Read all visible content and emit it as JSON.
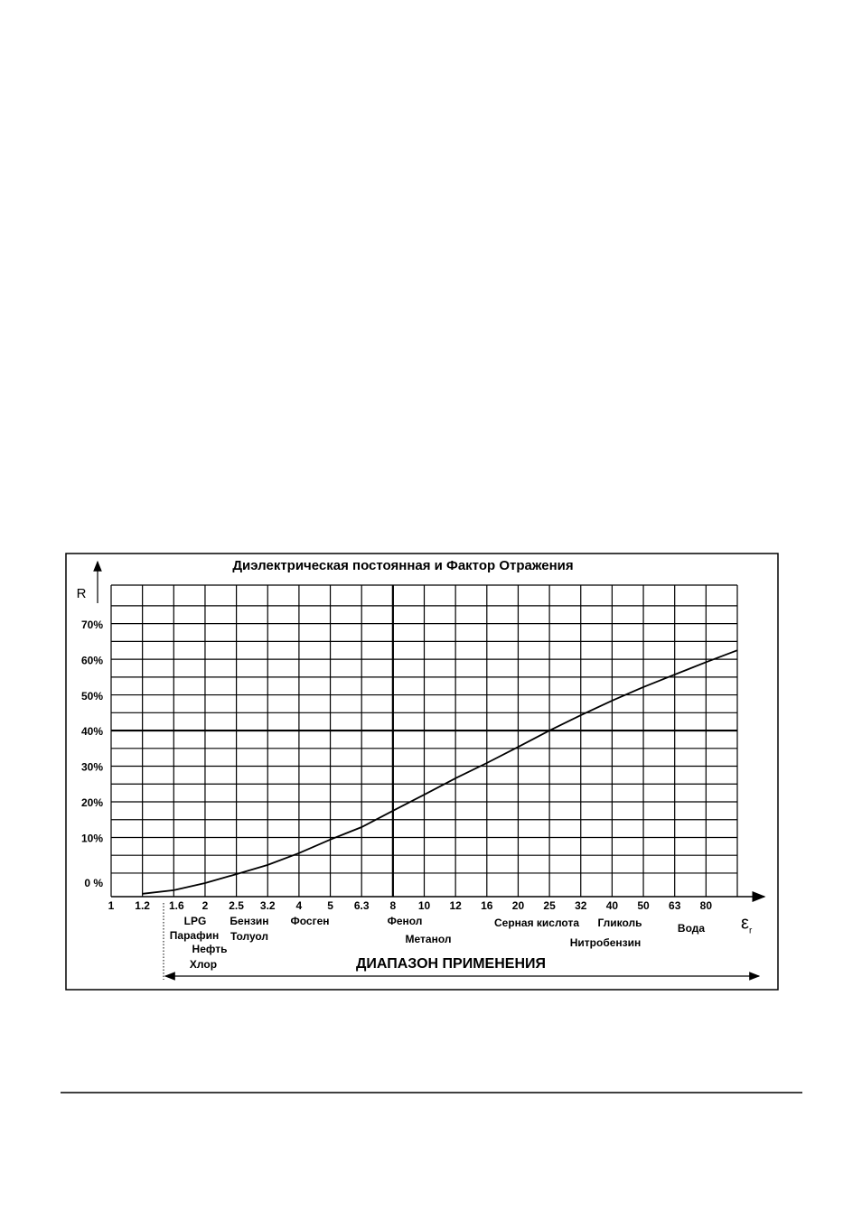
{
  "chart_data": {
    "type": "line",
    "title": "Диэлектрическая постоянная и Фактор Отражения",
    "y_label": "R",
    "x_label": "ε",
    "x_label_subscript": "r",
    "categories": [
      "1",
      "1.2",
      "1.6",
      "2",
      "2.5",
      "3.2",
      "4",
      "5",
      "6.3",
      "8",
      "10",
      "12",
      "16",
      "20",
      "25",
      "32",
      "40",
      "50",
      "63",
      "80",
      null
    ],
    "series": [
      {
        "name": "R",
        "color": "#000000",
        "values": [
          null,
          -5.8,
          -4.8,
          -2.8,
          -0.3,
          2.3,
          5.6,
          9.4,
          12.9,
          17.5,
          22,
          26.6,
          30.9,
          35.4,
          40,
          44.3,
          48.4,
          52.2,
          55.7,
          59.2,
          62.5
        ]
      }
    ],
    "ylim": [
      -6.6,
      80.8
    ],
    "yticks": [
      {
        "value": 0,
        "label": "0 %"
      },
      {
        "value": 10,
        "label": "10%"
      },
      {
        "value": 20,
        "label": "20%"
      },
      {
        "value": 30,
        "label": "30%"
      },
      {
        "value": 40,
        "label": "40%"
      },
      {
        "value": 50,
        "label": "50%"
      },
      {
        "value": 60,
        "label": "60%"
      },
      {
        "value": 70,
        "label": "70%"
      }
    ],
    "grid": true,
    "annotations": [
      "LPG",
      "Парафин",
      "Нефть",
      "Хлор",
      "Бензин",
      "Толуол",
      "Фосген",
      "Фенол",
      "Метанол",
      "Серная кислота",
      "Гликоль",
      "Нитробензин",
      "Вода"
    ],
    "range_label": "ДИАПАЗОН ПРИМЕНЕНИЯ"
  }
}
